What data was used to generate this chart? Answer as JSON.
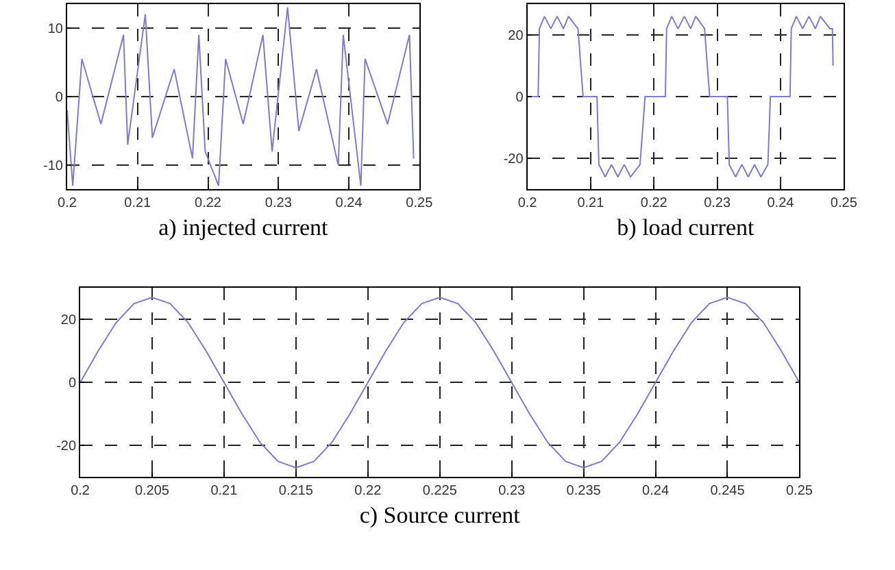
{
  "chart_data": [
    {
      "type": "line",
      "xlabel": "a) injected current",
      "xlim": [
        0.2,
        0.25
      ],
      "ylim": [
        -13.5,
        13.5
      ],
      "xticks": [
        0.2,
        0.21,
        0.22,
        0.23,
        0.24,
        0.25
      ],
      "yticks": [
        -10,
        0,
        10
      ],
      "grid": true,
      "series": [
        {
          "color": "#7b7bd0",
          "x": [
            0.2,
            0.2008,
            0.2021,
            0.2048,
            0.208,
            0.2086,
            0.2111,
            0.2121,
            0.2152,
            0.2178,
            0.2187,
            0.2196,
            0.2215,
            0.2225,
            0.225,
            0.2278,
            0.2291,
            0.2313,
            0.2329,
            0.2354,
            0.2385,
            0.2392,
            0.2417,
            0.2423,
            0.2455,
            0.2486,
            0.2492
          ],
          "values": [
            -2,
            -13,
            5.5,
            -4,
            9,
            -7,
            12,
            -6,
            4,
            -9,
            9,
            -8,
            -13,
            5.5,
            -4,
            9,
            -8,
            13,
            -5,
            4,
            -10,
            9,
            -13,
            5.5,
            -4,
            9,
            -9
          ]
        }
      ]
    },
    {
      "type": "line",
      "xlabel": "b) load current",
      "xlim": [
        0.2,
        0.25
      ],
      "ylim": [
        -30,
        30
      ],
      "xticks": [
        0.2,
        0.21,
        0.22,
        0.23,
        0.24,
        0.25
      ],
      "yticks": [
        -20,
        0,
        20
      ],
      "grid": true,
      "series": [
        {
          "color": "#7b7bd0",
          "x": [
            0.2,
            0.2017,
            0.2019,
            0.2027,
            0.2037,
            0.2047,
            0.2057,
            0.2065,
            0.208,
            0.2088,
            0.211,
            0.2113,
            0.2123,
            0.2133,
            0.2143,
            0.2153,
            0.2163,
            0.2178,
            0.2186,
            0.2218,
            0.222,
            0.2228,
            0.2238,
            0.2248,
            0.2258,
            0.2266,
            0.228,
            0.2288,
            0.2316,
            0.2319,
            0.2329,
            0.2339,
            0.2349,
            0.2359,
            0.2369,
            0.238,
            0.2384,
            0.2415,
            0.2417,
            0.2425,
            0.2435,
            0.2445,
            0.2455,
            0.2463,
            0.2478,
            0.2482,
            0.2483
          ],
          "values": [
            0,
            0,
            22,
            26,
            22,
            26,
            22,
            26,
            22,
            0,
            0,
            -22,
            -26,
            -22,
            -26,
            -22,
            -26,
            -22,
            0,
            0,
            22,
            26,
            22,
            26,
            22,
            26,
            22,
            0,
            0,
            -22,
            -26,
            -22,
            -26,
            -22,
            -26,
            -22,
            0,
            0,
            22,
            26,
            22,
            26,
            22,
            26,
            22,
            22,
            10
          ]
        }
      ]
    },
    {
      "type": "line",
      "xlabel": "c) Source current",
      "xlim": [
        0.2,
        0.25
      ],
      "ylim": [
        -30,
        30
      ],
      "xticks": [
        0.2,
        0.205,
        0.21,
        0.215,
        0.22,
        0.225,
        0.23,
        0.235,
        0.24,
        0.245,
        0.25
      ],
      "yticks": [
        -20,
        0,
        20
      ],
      "grid": true,
      "series": [
        {
          "color": "#7b7bd0",
          "x": [
            0.2,
            0.20125,
            0.2025,
            0.20375,
            0.205,
            0.20625,
            0.2075,
            0.20875,
            0.21,
            0.21125,
            0.2125,
            0.21375,
            0.215,
            0.21625,
            0.2175,
            0.21875,
            0.22,
            0.22125,
            0.2225,
            0.22375,
            0.225,
            0.22625,
            0.2275,
            0.22875,
            0.23,
            0.23125,
            0.2325,
            0.23375,
            0.235,
            0.23625,
            0.2375,
            0.23875,
            0.24,
            0.24125,
            0.2425,
            0.24375,
            0.245,
            0.24625,
            0.2475,
            0.24875,
            0.25
          ],
          "values": [
            0,
            10,
            19,
            25,
            27,
            25,
            19,
            10,
            0,
            -10,
            -19,
            -25,
            -27,
            -25,
            -19,
            -10,
            0,
            10,
            19,
            25,
            27,
            25,
            19,
            10,
            0,
            -10,
            -19,
            -25,
            -27,
            -25,
            -19,
            -10,
            0,
            10,
            19,
            25,
            27,
            25,
            19,
            10,
            0
          ]
        }
      ]
    }
  ]
}
